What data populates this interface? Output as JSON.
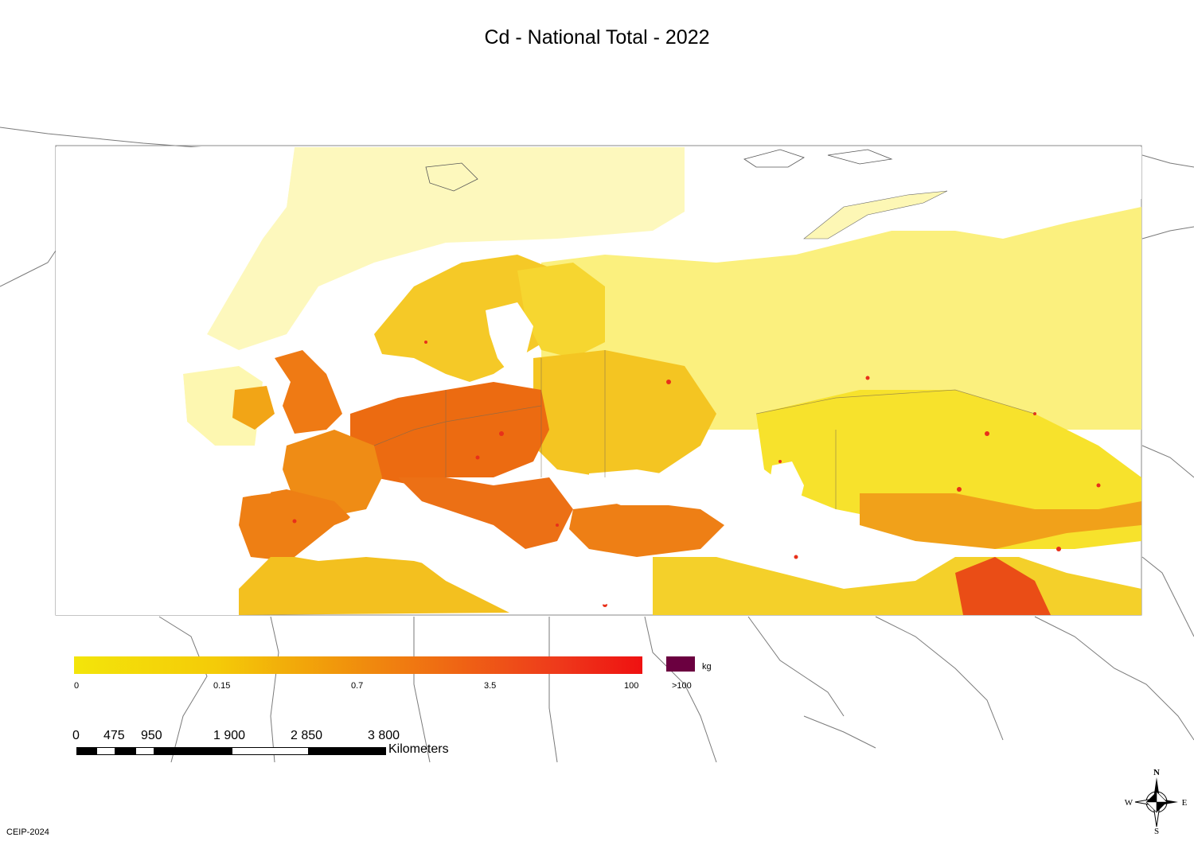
{
  "title": "Cd - National Total - 2022",
  "legend": {
    "ticks": [
      "0",
      "0.15",
      "0.7",
      "3.5",
      "100"
    ],
    "overflow_label": ">100",
    "unit": "kg",
    "colors": {
      "low": "#f3e50a",
      "mid": "#f19a0b",
      "high": "#ef1111",
      "overflow": "#6b0040"
    }
  },
  "scalebar": {
    "labels": [
      "0",
      "475",
      "950",
      "1 900",
      "2 850",
      "3 800"
    ],
    "unit": "Kilometers"
  },
  "compass": {
    "n": "N",
    "s": "S",
    "e": "E",
    "w": "W"
  },
  "footer": "CEIP-2024"
}
